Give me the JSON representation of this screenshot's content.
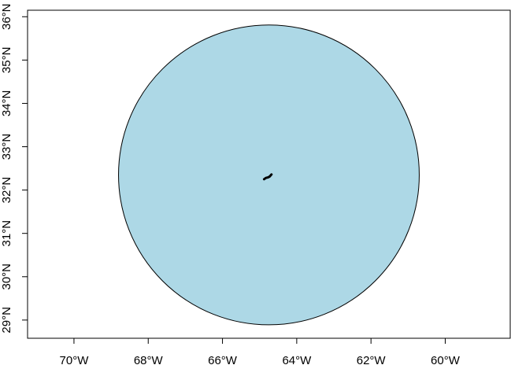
{
  "map": {
    "projection": "lon-lat",
    "xlim": [
      -71.25,
      -58.25
    ],
    "ylim": [
      28.58,
      36.15
    ],
    "x_ticks": [
      {
        "value": -70,
        "label": "70°W"
      },
      {
        "value": -68,
        "label": "68°W"
      },
      {
        "value": -66,
        "label": "66°W"
      },
      {
        "value": -64,
        "label": "64°W"
      },
      {
        "value": -62,
        "label": "62°W"
      },
      {
        "value": -60,
        "label": "60°W"
      }
    ],
    "y_ticks": [
      {
        "value": 29,
        "label": "29°N"
      },
      {
        "value": 30,
        "label": "30°N"
      },
      {
        "value": 31,
        "label": "31°N"
      },
      {
        "value": 32,
        "label": "32°N"
      },
      {
        "value": 33,
        "label": "33°N"
      },
      {
        "value": 34,
        "label": "34°N"
      },
      {
        "value": 35,
        "label": "35°N"
      },
      {
        "value": 36,
        "label": "36°N"
      }
    ],
    "buffer": {
      "center_lon": -64.75,
      "center_lat": 32.35,
      "radius_lon": 4.05,
      "radius_lat": 3.46,
      "fill": "#add8e6",
      "stroke": "#000000"
    },
    "island": {
      "points": [
        [
          -64.88,
          32.25
        ],
        [
          -64.83,
          32.28
        ],
        [
          -64.78,
          32.29
        ],
        [
          -64.73,
          32.31
        ],
        [
          -64.68,
          32.36
        ]
      ],
      "color": "#000000"
    },
    "grid": false
  }
}
